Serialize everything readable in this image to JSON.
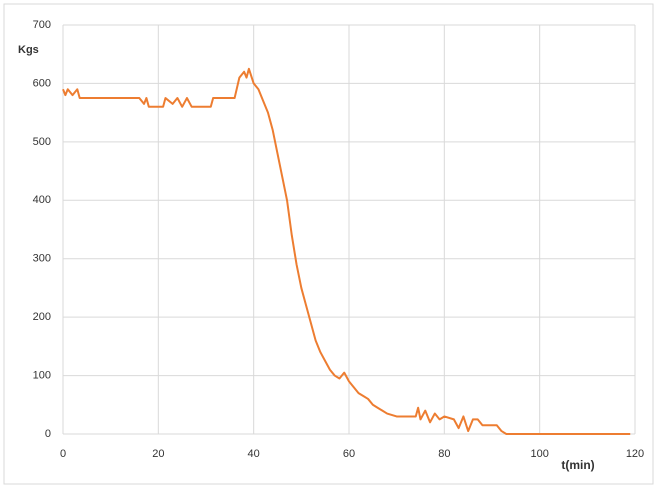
{
  "chart_data": {
    "type": "line",
    "y_label": "Kgs",
    "x_label": "t(min)",
    "x": [
      0,
      0.5,
      1,
      2,
      3,
      3.5,
      16,
      17,
      17.5,
      18,
      21,
      21.5,
      23,
      24,
      25,
      26,
      27,
      31,
      31.5,
      36,
      37,
      38,
      38.5,
      39,
      40,
      41,
      42,
      43,
      44,
      45,
      46,
      47,
      48,
      49,
      50,
      51,
      52,
      53,
      54,
      55,
      56,
      57,
      58,
      59,
      60,
      61,
      62,
      63,
      64,
      65,
      66,
      67,
      68,
      70,
      74,
      74.5,
      75,
      76,
      77,
      78,
      79,
      80,
      82,
      83,
      84,
      85,
      86,
      87,
      88,
      91,
      92,
      93,
      119
    ],
    "values": [
      590,
      580,
      590,
      580,
      590,
      575,
      575,
      565,
      575,
      560,
      560,
      575,
      565,
      575,
      560,
      575,
      560,
      560,
      575,
      575,
      610,
      620,
      610,
      625,
      600,
      590,
      570,
      550,
      520,
      480,
      440,
      400,
      340,
      290,
      250,
      220,
      190,
      160,
      140,
      125,
      110,
      100,
      95,
      105,
      90,
      80,
      70,
      65,
      60,
      50,
      45,
      40,
      35,
      30,
      30,
      45,
      25,
      40,
      20,
      35,
      25,
      30,
      25,
      10,
      30,
      5,
      25,
      25,
      15,
      15,
      5,
      0,
      0
    ],
    "color": "#ed7d31",
    "xlim": [
      0,
      120
    ],
    "xticks": [
      0,
      20,
      40,
      60,
      80,
      100,
      120
    ],
    "ylim": [
      0,
      700
    ],
    "yticks": [
      0,
      100,
      200,
      300,
      400,
      500,
      600,
      700
    ],
    "grid": true
  }
}
